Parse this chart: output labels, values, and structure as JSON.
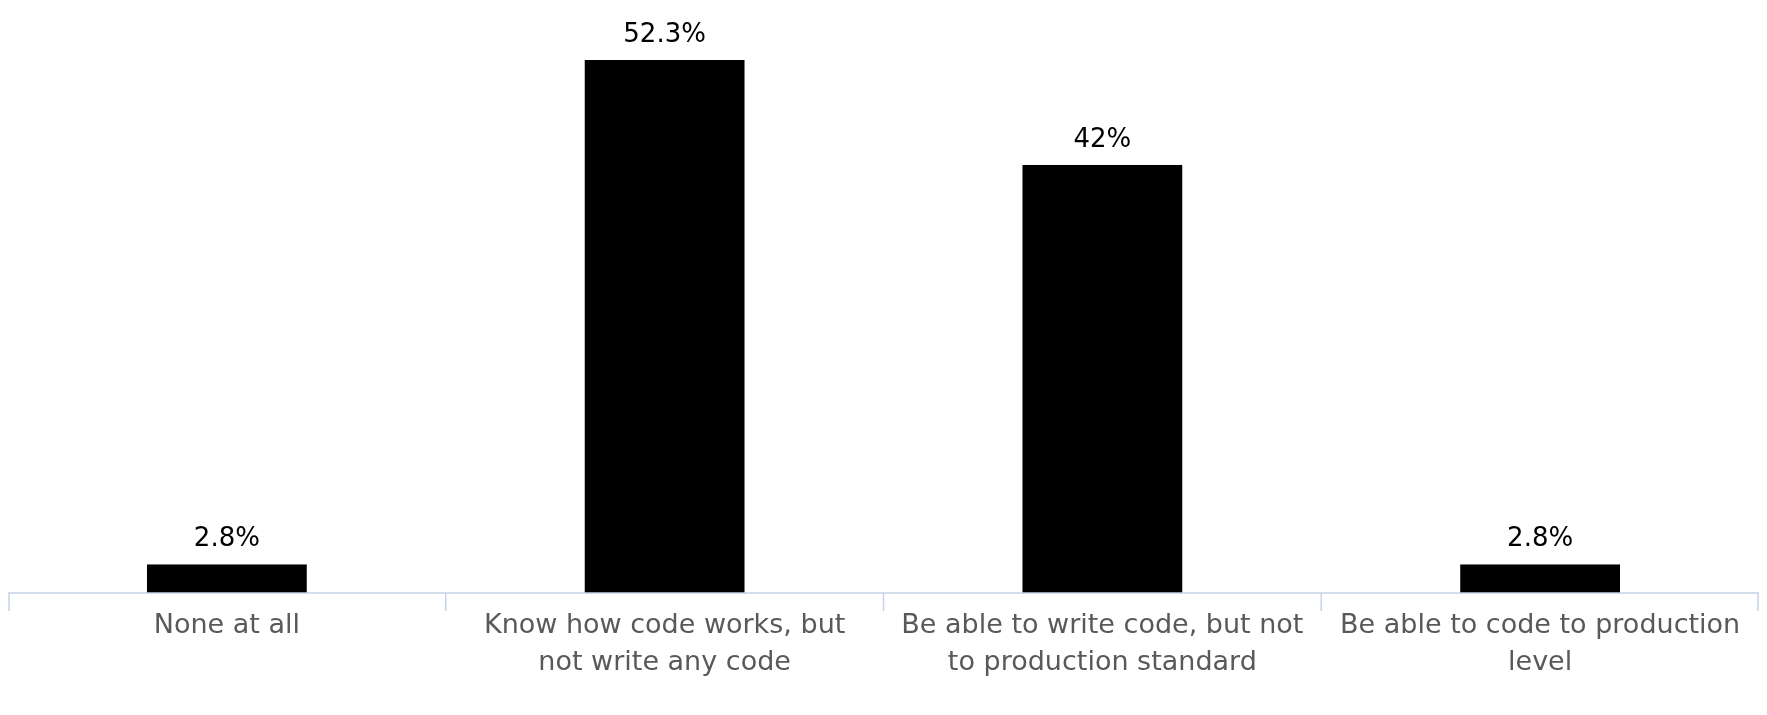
{
  "chart_data": {
    "type": "bar",
    "categories": [
      "None at all",
      "Know how code works, but not write any code",
      "Be able to write code, but not to production standard",
      "Be able to code to production level"
    ],
    "values": [
      2.8,
      52.3,
      42,
      2.8
    ],
    "color": "#000000",
    "value_labels": [
      "2.8%",
      "52.3%",
      "42%",
      "2.8%"
    ]
  }
}
